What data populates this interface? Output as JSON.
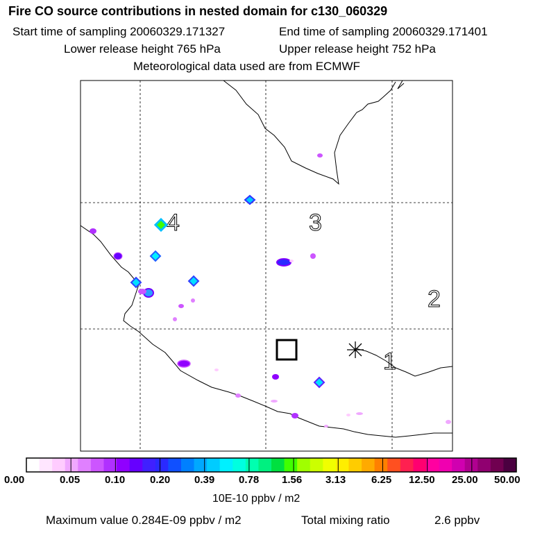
{
  "header": {
    "title": "Fire CO source contributions in nested domain for c130_060329",
    "start_label": "Start time of sampling 20060329.171327",
    "end_label": "End time of sampling 20060329.171401",
    "lower_label": "Lower release height  765 hPa",
    "upper_label": "Upper release height  752 hPa",
    "met_label": "Meteorological data used are from ECMWF"
  },
  "map": {
    "region_labels": [
      "4",
      "3",
      "2",
      "1"
    ]
  },
  "colorbar": {
    "tick_labels": [
      "0.00",
      "0.05",
      "0.10",
      "0.20",
      "0.39",
      "0.78",
      "1.56",
      "3.13",
      "6.25",
      "12.50",
      "25.00",
      "50.00"
    ],
    "unit": "10E-10 ppbv / m2",
    "colors": [
      "#ffffff",
      "#ffe6ff",
      "#ffccff",
      "#f0a8ff",
      "#e080ff",
      "#cc55ff",
      "#b030ff",
      "#9000ff",
      "#6600ff",
      "#4020ff",
      "#2a2aff",
      "#1050ff",
      "#0080ff",
      "#00a8ff",
      "#00ccff",
      "#00f0ff",
      "#00ffe0",
      "#00ffb0",
      "#00f080",
      "#00e040",
      "#40ff00",
      "#a0ff00",
      "#ccff00",
      "#f0ff00",
      "#ffee00",
      "#ffcc00",
      "#ffaa00",
      "#ff8000",
      "#ff5020",
      "#ff2050",
      "#ff0070",
      "#ff00a0",
      "#f000b0",
      "#d000b0",
      "#b00090",
      "#900070",
      "#700050",
      "#4a0040"
    ]
  },
  "footer": {
    "max_label": "Maximum value  0.284E-09 ppbv / m2",
    "total_label": "Total mixing ratio",
    "total_value": "2.6 ppbv"
  }
}
